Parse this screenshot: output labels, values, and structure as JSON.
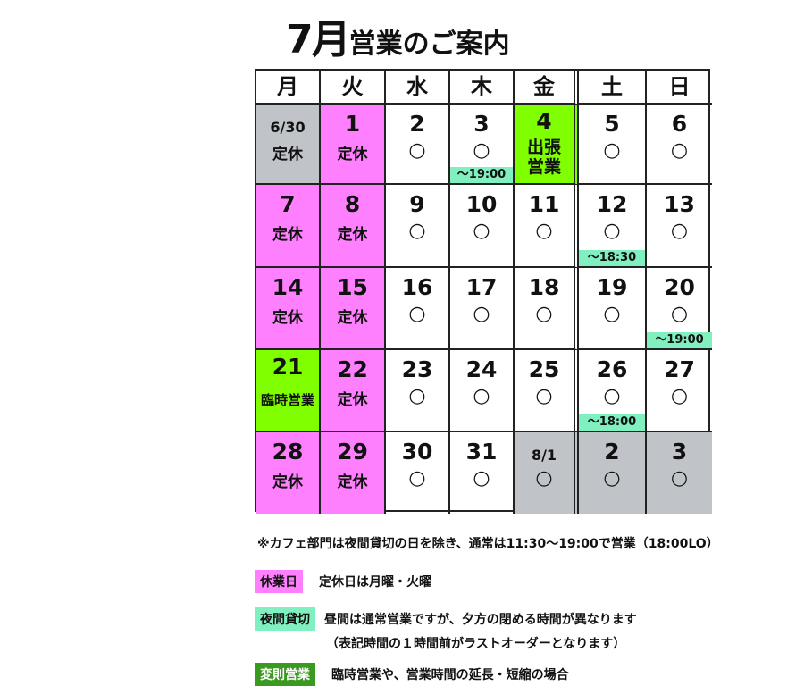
{
  "title": {
    "month": "7月",
    "text": "営業のご案内"
  },
  "weekdays": [
    "月",
    "火",
    "水",
    "木",
    "金",
    "土",
    "日"
  ],
  "colors": {
    "holiday": "#ff80ff",
    "other_month": "#c0c4c8",
    "special": "#80ff00",
    "night_rental": "#80f0c0",
    "special_legend": "#3a9a20"
  },
  "weeks": [
    [
      {
        "date": "6/30",
        "status": "定休",
        "type": "gray"
      },
      {
        "date": "1",
        "status": "定休",
        "type": "pink"
      },
      {
        "date": "2",
        "status": "○"
      },
      {
        "date": "3",
        "status": "○",
        "note": "～19:00"
      },
      {
        "date": "4",
        "status": "出張営業",
        "type": "green"
      },
      {
        "date": "5",
        "status": "○"
      },
      {
        "date": "6",
        "status": "○"
      }
    ],
    [
      {
        "date": "7",
        "status": "定休",
        "type": "pink"
      },
      {
        "date": "8",
        "status": "定休",
        "type": "pink"
      },
      {
        "date": "9",
        "status": "○"
      },
      {
        "date": "10",
        "status": "○"
      },
      {
        "date": "11",
        "status": "○"
      },
      {
        "date": "12",
        "status": "○",
        "note": "～18:30"
      },
      {
        "date": "13",
        "status": "○"
      }
    ],
    [
      {
        "date": "14",
        "status": "定休",
        "type": "pink"
      },
      {
        "date": "15",
        "status": "定休",
        "type": "pink"
      },
      {
        "date": "16",
        "status": "○"
      },
      {
        "date": "17",
        "status": "○"
      },
      {
        "date": "18",
        "status": "○"
      },
      {
        "date": "19",
        "status": "○"
      },
      {
        "date": "20",
        "status": "○",
        "note": "～19:00"
      }
    ],
    [
      {
        "date": "21",
        "status": "臨時営業",
        "type": "green"
      },
      {
        "date": "22",
        "status": "定休",
        "type": "pink"
      },
      {
        "date": "23",
        "status": "○"
      },
      {
        "date": "24",
        "status": "○"
      },
      {
        "date": "25",
        "status": "○"
      },
      {
        "date": "26",
        "status": "○",
        "note": "～18:00"
      },
      {
        "date": "27",
        "status": "○"
      }
    ],
    [
      {
        "date": "28",
        "status": "定休",
        "type": "pink"
      },
      {
        "date": "29",
        "status": "定休",
        "type": "pink"
      },
      {
        "date": "30",
        "status": "○"
      },
      {
        "date": "31",
        "status": "○"
      },
      {
        "date": "8/1",
        "status": "○",
        "type": "gray"
      },
      {
        "date": "2",
        "status": "○",
        "type": "gray"
      },
      {
        "date": "3",
        "status": "○",
        "type": "gray"
      }
    ]
  ],
  "footnote": "※カフェ部門は夜間貸切の日を除き、通常は11:30～19:00で営業（18:00LO）",
  "legend": [
    {
      "badge": "休業日",
      "text": "定休日は月曜・火曜"
    },
    {
      "badge": "夜間貸切",
      "text": "昼間は通常営業ですが、夕方の閉める時間が異なります",
      "text2": "（表記時間の１時間前がラストオーダーとなります）"
    },
    {
      "badge": "変則営業",
      "text": "臨時営業や、営業時間の延長・短縮の場合"
    }
  ]
}
